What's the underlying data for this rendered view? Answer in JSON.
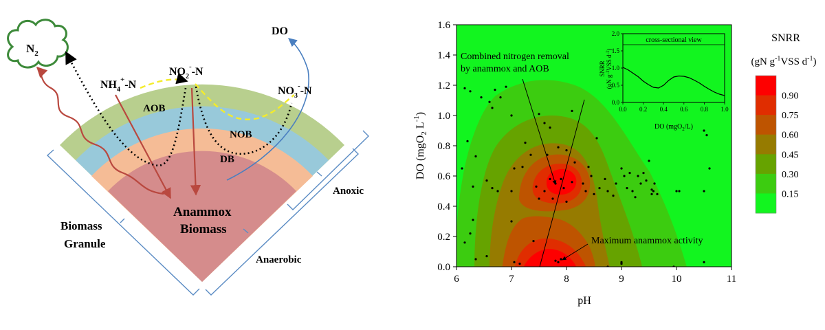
{
  "schematic": {
    "n2": "N",
    "n2_sub": "2",
    "do_label": "DO",
    "nh4": "NH",
    "nh4_sub": "4",
    "nh4_sup": "+",
    "nh4_tail": "-N",
    "no2": "NO",
    "no2_sub": "2",
    "no2_sup": "-",
    "no2_tail": "-N",
    "no3": "NO",
    "no3_sub": "3",
    "no3_sup": "-",
    "no3_tail": "-N",
    "aob": "AOB",
    "nob": "NOB",
    "db": "DB",
    "anammox_line1": "Anammox",
    "anammox_line2": "Biomass",
    "granule_line1": "Biomass",
    "granule_line2": "Granule",
    "anoxic": "Anoxic",
    "anaerobic": "Anaerobic"
  },
  "chart_data": {
    "type": "contour",
    "xlabel": "pH",
    "ylabel_main": "DO (mgO",
    "ylabel_sub": "2",
    "ylabel_tail": " L",
    "ylabel_sup": "-1",
    "ylabel_end": ")",
    "xlim": [
      6,
      11
    ],
    "ylim": [
      0,
      1.6
    ],
    "x_ticks": [
      "6",
      "7",
      "8",
      "9",
      "10",
      "11"
    ],
    "y_ticks": [
      "0.0",
      "0.2",
      "0.4",
      "0.6",
      "0.8",
      "1.0",
      "1.2",
      "1.4",
      "1.6"
    ],
    "colorbar_title_1": "SNRR",
    "colorbar_title_2": "(gN g",
    "colorbar_title_2_sup": "-1",
    "colorbar_title_2_tail": "VSS d",
    "colorbar_title_2_sup2": "-1",
    "colorbar_title_2_end": ")",
    "colorbar_levels": [
      "0.90",
      "0.75",
      "0.60",
      "0.45",
      "0.30",
      "0.15"
    ],
    "colors": [
      "#fe0000",
      "#e02d00",
      "#be5400",
      "#967b00",
      "#66a300",
      "#3ccc10",
      "#12f51f"
    ],
    "annotation_1_line1": "Combined nitrogen removal",
    "annotation_1_line2": "by anammox and AOB",
    "annotation_2": "Maximum anammox activity",
    "points": [
      [
        6.15,
        1.18
      ],
      [
        6.25,
        1.16
      ],
      [
        6.2,
        0.83
      ],
      [
        6.1,
        0.65
      ],
      [
        6.35,
        0.73
      ],
      [
        6.3,
        0.53
      ],
      [
        6.15,
        0.16
      ],
      [
        6.25,
        0.22
      ],
      [
        6.3,
        0.31
      ],
      [
        6.45,
        1.12
      ],
      [
        6.6,
        1.09
      ],
      [
        6.65,
        1.05
      ],
      [
        6.7,
        1.17
      ],
      [
        6.8,
        1.12
      ],
      [
        6.9,
        1.19
      ],
      [
        6.55,
        0.57
      ],
      [
        6.65,
        0.52
      ],
      [
        6.75,
        0.5
      ],
      [
        6.55,
        0.07
      ],
      [
        6.35,
        0.05
      ],
      [
        7.0,
        1.0
      ],
      [
        7.05,
        0.65
      ],
      [
        7.0,
        0.5
      ],
      [
        7.0,
        0.3
      ],
      [
        7.2,
        0.66
      ],
      [
        7.25,
        0.82
      ],
      [
        7.35,
        0.74
      ],
      [
        7.45,
        0.53
      ],
      [
        7.5,
        0.45
      ],
      [
        7.4,
        0.17
      ],
      [
        7.15,
        0.02
      ],
      [
        7.05,
        0.03
      ],
      [
        7.5,
        1.01
      ],
      [
        7.6,
        0.95
      ],
      [
        7.7,
        0.92
      ],
      [
        7.65,
        0.74
      ],
      [
        7.7,
        0.58
      ],
      [
        7.6,
        0.5
      ],
      [
        7.75,
        0.45
      ],
      [
        7.8,
        0.55
      ],
      [
        7.9,
        0.58
      ],
      [
        7.95,
        0.52
      ],
      [
        8.0,
        0.43
      ],
      [
        8.1,
        0.56
      ],
      [
        8.15,
        0.69
      ],
      [
        8.0,
        0.77
      ],
      [
        7.85,
        0.79
      ],
      [
        7.8,
        0.04
      ],
      [
        7.85,
        0.03
      ],
      [
        7.9,
        0.05
      ],
      [
        8.1,
        1.03
      ],
      [
        8.3,
        0.55
      ],
      [
        8.35,
        0.5
      ],
      [
        8.4,
        0.66
      ],
      [
        8.45,
        0.6
      ],
      [
        8.5,
        0.48
      ],
      [
        8.55,
        0.85
      ],
      [
        8.6,
        0.52
      ],
      [
        8.7,
        0.58
      ],
      [
        8.75,
        0.5
      ],
      [
        8.85,
        0.47
      ],
      [
        8.9,
        0.55
      ],
      [
        9.0,
        0.65
      ],
      [
        9.05,
        0.6
      ],
      [
        9.1,
        0.52
      ],
      [
        9.15,
        0.62
      ],
      [
        9.2,
        0.5
      ],
      [
        9.25,
        0.46
      ],
      [
        9.3,
        0.6
      ],
      [
        9.35,
        0.55
      ],
      [
        9.4,
        0.62
      ],
      [
        9.45,
        0.57
      ],
      [
        9.5,
        0.7
      ],
      [
        9.55,
        0.51
      ],
      [
        9.58,
        0.5
      ],
      [
        9.6,
        0.55
      ],
      [
        9.65,
        0.48
      ],
      [
        9.55,
        0.48
      ],
      [
        9.0,
        0.03
      ],
      [
        9.0,
        0.02
      ],
      [
        10.0,
        0.5
      ],
      [
        10.05,
        0.5
      ],
      [
        10.5,
        0.9
      ],
      [
        10.55,
        0.87
      ],
      [
        10.5,
        0.5
      ],
      [
        10.6,
        0.65
      ],
      [
        10.5,
        0.03
      ],
      [
        9.95,
        0.0
      ],
      [
        8.75,
        0.0
      ]
    ],
    "inset": {
      "title": "cross-sectional view",
      "xlabel_main": "DO (mgO",
      "xlabel_sub": "2",
      "xlabel_tail": "/L)",
      "ylabel_1": "SNRR",
      "ylabel_2": "(gN g",
      "ylabel_2_sup": "-1",
      "ylabel_2_tail": "VSS d",
      "ylabel_2_sup2": "-1",
      "ylabel_2_end": ")",
      "xlim": [
        0,
        1.0
      ],
      "ylim": [
        0,
        2.0
      ],
      "x_ticks": [
        "0.0",
        "0.2",
        "0.4",
        "0.6",
        "0.8",
        "1.0"
      ],
      "y_ticks": [
        "0.0",
        "0.5",
        "1.0",
        "1.5",
        "2.0"
      ],
      "x": [
        0.0,
        0.05,
        0.1,
        0.15,
        0.2,
        0.25,
        0.3,
        0.35,
        0.4,
        0.45,
        0.5,
        0.55,
        0.6,
        0.65,
        0.7,
        0.75,
        0.8,
        0.85,
        0.9,
        0.95,
        1.0
      ],
      "y": [
        1.02,
        0.95,
        0.85,
        0.75,
        0.62,
        0.52,
        0.44,
        0.42,
        0.5,
        0.64,
        0.74,
        0.77,
        0.76,
        0.72,
        0.65,
        0.57,
        0.47,
        0.38,
        0.3,
        0.24,
        0.2
      ]
    }
  }
}
